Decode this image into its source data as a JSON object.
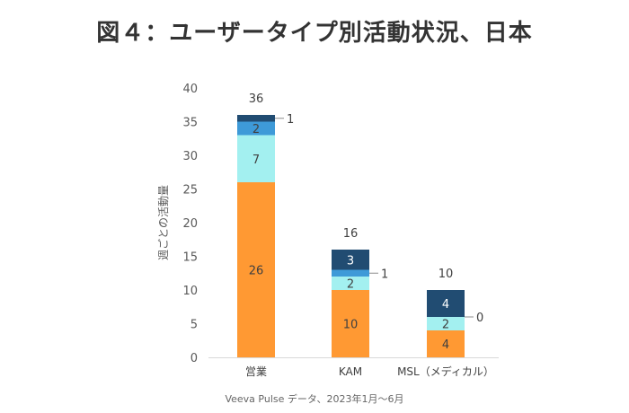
{
  "title": "図４：ユーザータイプ別活動状況、日本",
  "source": "Veeva Pulse データ、2023年1月～6月",
  "chart_data": {
    "type": "bar",
    "stacked": true,
    "title": "図４：ユーザータイプ別活動状況、日本",
    "xlabel": "",
    "ylabel": "週ごとの活動量",
    "ylim": [
      0,
      40
    ],
    "yticks": [
      0,
      5,
      10,
      15,
      20,
      25,
      30,
      35,
      40
    ],
    "grid": false,
    "legend": "none",
    "categories": [
      "営業",
      "KAM",
      "MSL（メディカル）"
    ],
    "series": [
      {
        "name": "series-1",
        "color": "#FF9933",
        "label_color": "#404040",
        "values": [
          26,
          10,
          4
        ]
      },
      {
        "name": "series-2",
        "color": "#A3F0F0",
        "label_color": "#404040",
        "values": [
          7,
          2,
          2
        ]
      },
      {
        "name": "series-3",
        "color": "#3E9AD8",
        "label_color": "#404040",
        "values": [
          2,
          1,
          0
        ]
      },
      {
        "name": "series-4",
        "color": "#214C72",
        "label_color": "#FFFFFF",
        "values": [
          1,
          3,
          4
        ]
      }
    ],
    "totals": [
      36,
      16,
      10
    ],
    "annotations": [
      "Veeva Pulse データ、2023年1月～6月"
    ]
  }
}
